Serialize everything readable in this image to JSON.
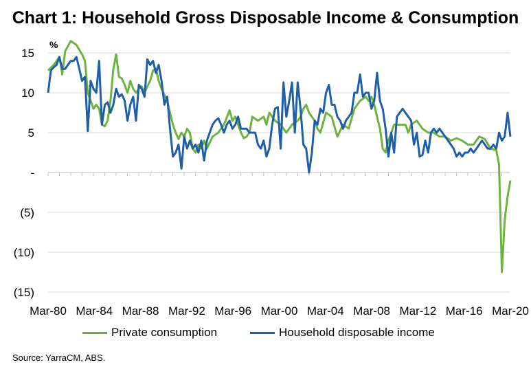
{
  "chart_data": {
    "type": "line",
    "title": "Chart 1: Household Gross Disposable Income & Consumption",
    "ylabel": "%",
    "ylim": [
      -15,
      15
    ],
    "yticks": [
      15,
      10,
      5,
      0,
      -5,
      -10,
      -15
    ],
    "ytick_labels": [
      "15",
      "10",
      "5",
      "-",
      "(5)",
      "(10)",
      "(15)"
    ],
    "xticks": [
      "Mar-80",
      "Mar-84",
      "Mar-88",
      "Mar-92",
      "Mar-96",
      "Mar-00",
      "Mar-04",
      "Mar-08",
      "Mar-12",
      "Mar-16",
      "Mar-20"
    ],
    "xlim": [
      1980.0,
      2020.75
    ],
    "grid": "horizontal",
    "legend_position": "bottom",
    "source": "Source: YarraCM, ABS.",
    "series": [
      {
        "name": "Private consumption",
        "color": "#6db33f",
        "points": [
          [
            1980.0,
            12.8
          ],
          [
            1980.5,
            13.5
          ],
          [
            1981.0,
            14.5
          ],
          [
            1981.25,
            12.3
          ],
          [
            1981.5,
            15.2
          ],
          [
            1982.0,
            16.5
          ],
          [
            1982.5,
            16.0
          ],
          [
            1983.0,
            14.8
          ],
          [
            1983.25,
            14.0
          ],
          [
            1983.5,
            10.0
          ],
          [
            1984.0,
            8.0
          ],
          [
            1984.25,
            8.5
          ],
          [
            1984.5,
            8.0
          ],
          [
            1984.75,
            6.0
          ],
          [
            1985.0,
            5.8
          ],
          [
            1985.25,
            6.5
          ],
          [
            1985.5,
            9.0
          ],
          [
            1985.75,
            13.0
          ],
          [
            1986.0,
            14.8
          ],
          [
            1986.25,
            12.0
          ],
          [
            1986.5,
            11.8
          ],
          [
            1986.75,
            11.0
          ],
          [
            1987.0,
            10.0
          ],
          [
            1987.25,
            11.5
          ],
          [
            1987.5,
            10.5
          ],
          [
            1987.75,
            10.0
          ],
          [
            1988.0,
            10.5
          ],
          [
            1988.25,
            10.8
          ],
          [
            1988.5,
            10.0
          ],
          [
            1988.75,
            10.8
          ],
          [
            1989.0,
            11.5
          ],
          [
            1989.25,
            12.8
          ],
          [
            1989.5,
            13.0
          ],
          [
            1989.75,
            11.5
          ],
          [
            1990.0,
            10.5
          ],
          [
            1990.5,
            9.0
          ],
          [
            1991.0,
            6.0
          ],
          [
            1991.25,
            5.0
          ],
          [
            1991.5,
            4.2
          ],
          [
            1991.75,
            5.0
          ],
          [
            1992.0,
            4.5
          ],
          [
            1992.25,
            5.5
          ],
          [
            1992.5,
            5.0
          ],
          [
            1992.75,
            3.0
          ],
          [
            1993.0,
            2.5
          ],
          [
            1993.25,
            3.5
          ],
          [
            1993.5,
            3.0
          ],
          [
            1993.75,
            4.0
          ],
          [
            1994.0,
            3.0
          ],
          [
            1994.5,
            4.5
          ],
          [
            1995.0,
            5.0
          ],
          [
            1995.5,
            6.0
          ],
          [
            1996.0,
            7.8
          ],
          [
            1996.25,
            6.5
          ],
          [
            1996.5,
            7.0
          ],
          [
            1996.75,
            6.0
          ],
          [
            1997.0,
            5.0
          ],
          [
            1997.25,
            4.3
          ],
          [
            1997.5,
            4.5
          ],
          [
            1997.75,
            5.0
          ],
          [
            1998.0,
            7.0
          ],
          [
            1998.5,
            6.5
          ],
          [
            1999.0,
            7.0
          ],
          [
            1999.25,
            6.0
          ],
          [
            1999.5,
            7.5
          ],
          [
            1999.75,
            7.0
          ],
          [
            2000.0,
            6.5
          ],
          [
            2000.5,
            6.0
          ],
          [
            2001.0,
            5.0
          ],
          [
            2001.5,
            6.0
          ],
          [
            2002.0,
            6.5
          ],
          [
            2002.25,
            7.0
          ],
          [
            2002.5,
            8.0
          ],
          [
            2002.75,
            8.5
          ],
          [
            2003.0,
            7.5
          ],
          [
            2003.5,
            6.5
          ],
          [
            2003.75,
            5.5
          ],
          [
            2004.0,
            5.0
          ],
          [
            2004.5,
            7.5
          ],
          [
            2005.0,
            7.0
          ],
          [
            2005.5,
            4.5
          ],
          [
            2006.0,
            6.0
          ],
          [
            2006.5,
            5.5
          ],
          [
            2007.0,
            8.0
          ],
          [
            2007.5,
            9.0
          ],
          [
            2008.0,
            9.5
          ],
          [
            2008.25,
            9.0
          ],
          [
            2008.5,
            9.5
          ],
          [
            2008.75,
            8.5
          ],
          [
            2009.0,
            7.0
          ],
          [
            2009.25,
            5.5
          ],
          [
            2009.5,
            3.0
          ],
          [
            2009.75,
            2.5
          ],
          [
            2010.0,
            4.0
          ],
          [
            2010.25,
            5.0
          ],
          [
            2010.5,
            6.0
          ],
          [
            2011.0,
            6.0
          ],
          [
            2011.5,
            6.0
          ],
          [
            2011.75,
            5.0
          ],
          [
            2012.0,
            6.0
          ],
          [
            2012.5,
            6.5
          ],
          [
            2013.0,
            5.5
          ],
          [
            2013.5,
            5.0
          ],
          [
            2014.0,
            5.0
          ],
          [
            2014.5,
            4.5
          ],
          [
            2015.0,
            4.5
          ],
          [
            2015.5,
            4.0
          ],
          [
            2016.0,
            4.3
          ],
          [
            2016.5,
            4.0
          ],
          [
            2017.0,
            3.5
          ],
          [
            2017.5,
            3.5
          ],
          [
            2018.0,
            4.5
          ],
          [
            2018.5,
            4.2
          ],
          [
            2019.0,
            3.0
          ],
          [
            2019.5,
            2.8
          ],
          [
            2019.75,
            1.0
          ],
          [
            2020.0,
            -12.5
          ],
          [
            2020.25,
            -6.0
          ],
          [
            2020.5,
            -3.0
          ],
          [
            2020.75,
            -1.0
          ]
        ]
      },
      {
        "name": "Household disposable income",
        "color": "#1f5fa8",
        "points": [
          [
            1980.0,
            10.0
          ],
          [
            1980.25,
            12.8
          ],
          [
            1980.5,
            13.2
          ],
          [
            1980.75,
            13.5
          ],
          [
            1981.0,
            14.5
          ],
          [
            1981.25,
            13.0
          ],
          [
            1981.5,
            13.0
          ],
          [
            1981.75,
            13.5
          ],
          [
            1982.0,
            14.0
          ],
          [
            1982.25,
            14.0
          ],
          [
            1982.5,
            14.5
          ],
          [
            1982.75,
            13.0
          ],
          [
            1983.0,
            11.5
          ],
          [
            1983.25,
            12.0
          ],
          [
            1983.5,
            5.2
          ],
          [
            1983.75,
            11.5
          ],
          [
            1984.0,
            10.5
          ],
          [
            1984.25,
            10.0
          ],
          [
            1984.5,
            14.0
          ],
          [
            1984.75,
            6.0
          ],
          [
            1985.0,
            8.5
          ],
          [
            1985.25,
            8.8
          ],
          [
            1985.5,
            7.5
          ],
          [
            1985.75,
            8.5
          ],
          [
            1986.0,
            10.5
          ],
          [
            1986.25,
            9.5
          ],
          [
            1986.5,
            9.8
          ],
          [
            1986.75,
            9.0
          ],
          [
            1987.0,
            6.5
          ],
          [
            1987.25,
            8.5
          ],
          [
            1987.5,
            9.5
          ],
          [
            1987.75,
            6.5
          ],
          [
            1988.0,
            11.0
          ],
          [
            1988.25,
            10.5
          ],
          [
            1988.5,
            9.5
          ],
          [
            1988.75,
            14.2
          ],
          [
            1989.0,
            13.5
          ],
          [
            1989.25,
            14.0
          ],
          [
            1989.5,
            12.5
          ],
          [
            1989.75,
            13.5
          ],
          [
            1990.0,
            11.5
          ],
          [
            1990.25,
            8.5
          ],
          [
            1990.5,
            9.5
          ],
          [
            1990.75,
            5.5
          ],
          [
            1991.0,
            2.0
          ],
          [
            1991.25,
            2.5
          ],
          [
            1991.5,
            3.5
          ],
          [
            1991.75,
            0.5
          ],
          [
            1992.0,
            4.5
          ],
          [
            1992.25,
            3.0
          ],
          [
            1992.5,
            4.0
          ],
          [
            1992.75,
            3.0
          ],
          [
            1993.0,
            3.5
          ],
          [
            1993.25,
            2.5
          ],
          [
            1993.5,
            4.0
          ],
          [
            1993.75,
            1.5
          ],
          [
            1994.0,
            4.0
          ],
          [
            1994.25,
            5.0
          ],
          [
            1994.5,
            6.0
          ],
          [
            1994.75,
            6.5
          ],
          [
            1995.0,
            6.8
          ],
          [
            1995.25,
            6.0
          ],
          [
            1995.5,
            5.0
          ],
          [
            1995.75,
            6.0
          ],
          [
            1996.0,
            6.5
          ],
          [
            1996.25,
            5.5
          ],
          [
            1996.5,
            6.0
          ],
          [
            1996.75,
            7.0
          ],
          [
            1997.0,
            5.5
          ],
          [
            1997.25,
            5.5
          ],
          [
            1997.5,
            5.5
          ],
          [
            1997.75,
            5.0
          ],
          [
            1998.0,
            5.0
          ],
          [
            1998.25,
            5.0
          ],
          [
            1998.5,
            3.5
          ],
          [
            1998.75,
            3.0
          ],
          [
            1999.0,
            4.0
          ],
          [
            1999.25,
            2.0
          ],
          [
            1999.5,
            3.0
          ],
          [
            1999.75,
            6.0
          ],
          [
            2000.0,
            8.0
          ],
          [
            2000.25,
            8.2
          ],
          [
            2000.5,
            3.0
          ],
          [
            2000.75,
            11.3
          ],
          [
            2001.0,
            7.0
          ],
          [
            2001.25,
            9.0
          ],
          [
            2001.5,
            11.3
          ],
          [
            2001.75,
            5.0
          ],
          [
            2002.0,
            11.3
          ],
          [
            2002.25,
            8.0
          ],
          [
            2002.5,
            3.5
          ],
          [
            2002.75,
            3.0
          ],
          [
            2003.0,
            0.0
          ],
          [
            2003.25,
            2.5
          ],
          [
            2003.5,
            6.5
          ],
          [
            2003.75,
            6.0
          ],
          [
            2004.0,
            8.0
          ],
          [
            2004.25,
            7.5
          ],
          [
            2004.5,
            10.0
          ],
          [
            2004.75,
            11.0
          ],
          [
            2005.0,
            8.5
          ],
          [
            2005.25,
            8.5
          ],
          [
            2005.5,
            7.0
          ],
          [
            2005.75,
            6.5
          ],
          [
            2006.0,
            5.5
          ],
          [
            2006.25,
            6.5
          ],
          [
            2006.5,
            7.0
          ],
          [
            2006.75,
            7.5
          ],
          [
            2007.0,
            10.0
          ],
          [
            2007.25,
            10.0
          ],
          [
            2007.5,
            12.3
          ],
          [
            2007.75,
            9.5
          ],
          [
            2008.0,
            10.0
          ],
          [
            2008.25,
            10.0
          ],
          [
            2008.5,
            8.0
          ],
          [
            2008.75,
            9.0
          ],
          [
            2009.0,
            12.5
          ],
          [
            2009.25,
            9.0
          ],
          [
            2009.5,
            8.0
          ],
          [
            2009.75,
            5.5
          ],
          [
            2010.0,
            2.0
          ],
          [
            2010.25,
            5.0
          ],
          [
            2010.5,
            2.5
          ],
          [
            2010.75,
            7.0
          ],
          [
            2011.0,
            7.5
          ],
          [
            2011.25,
            8.0
          ],
          [
            2011.5,
            7.5
          ],
          [
            2011.75,
            7.0
          ],
          [
            2012.0,
            6.5
          ],
          [
            2012.25,
            3.5
          ],
          [
            2012.5,
            5.0
          ],
          [
            2012.75,
            2.0
          ],
          [
            2013.0,
            2.2
          ],
          [
            2013.25,
            4.0
          ],
          [
            2013.5,
            2.5
          ],
          [
            2013.75,
            5.0
          ],
          [
            2014.0,
            5.5
          ],
          [
            2014.25,
            5.0
          ],
          [
            2014.5,
            5.5
          ],
          [
            2014.75,
            5.0
          ],
          [
            2015.0,
            4.5
          ],
          [
            2015.25,
            4.0
          ],
          [
            2015.5,
            3.5
          ],
          [
            2015.75,
            3.0
          ],
          [
            2016.0,
            2.0
          ],
          [
            2016.25,
            2.5
          ],
          [
            2016.5,
            2.0
          ],
          [
            2016.75,
            2.5
          ],
          [
            2017.0,
            2.5
          ],
          [
            2017.25,
            3.0
          ],
          [
            2017.5,
            2.5
          ],
          [
            2017.75,
            3.0
          ],
          [
            2018.0,
            3.5
          ],
          [
            2018.25,
            4.0
          ],
          [
            2018.5,
            3.5
          ],
          [
            2018.75,
            3.0
          ],
          [
            2019.0,
            3.0
          ],
          [
            2019.25,
            3.5
          ],
          [
            2019.5,
            3.0
          ],
          [
            2019.75,
            5.0
          ],
          [
            2020.0,
            4.0
          ],
          [
            2020.25,
            4.5
          ],
          [
            2020.5,
            7.5
          ],
          [
            2020.75,
            4.5
          ]
        ]
      }
    ]
  }
}
